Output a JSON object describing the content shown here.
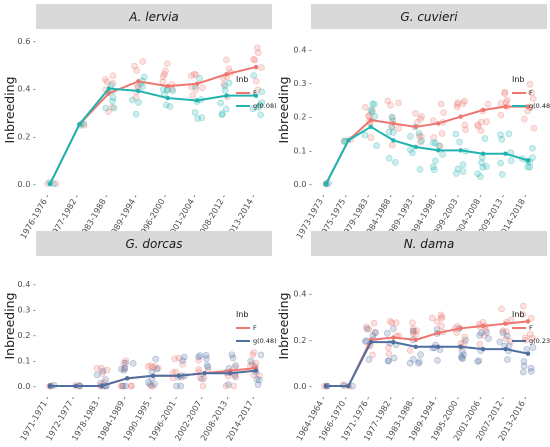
{
  "figure": {
    "legend_title": "Inb",
    "colors": {
      "F": "#ee766f",
      "g": "#20b3b0",
      "g_navy": "#4f6fa0",
      "strip": "#d9d9d9"
    }
  },
  "chart_data": [
    {
      "type": "line",
      "title": "A. lervia",
      "ylabel": "Inbreeding",
      "xlabel": "",
      "ylim": [
        0,
        0.62
      ],
      "yticks": [
        0.0,
        0.2,
        0.4,
        0.6
      ],
      "ytick_labels": [
        "0.0 -",
        "0.2 -",
        "0.4 -",
        "0.6 -"
      ],
      "categories": [
        "1976-1976",
        "1977-1982",
        "1983-1988",
        "1989-1994",
        "1996-2000",
        "2001-2004",
        "2008-2012",
        "2013-2014"
      ],
      "legend": [
        {
          "key": "F",
          "label": "F"
        },
        {
          "key": "g",
          "label": "g(0.08)"
        }
      ],
      "series": [
        {
          "name": "F",
          "key": "F",
          "values": [
            0.0,
            0.25,
            0.38,
            0.43,
            0.41,
            0.42,
            0.46,
            0.49
          ]
        },
        {
          "name": "g(0.08)",
          "key": "g",
          "values": [
            0.0,
            0.25,
            0.4,
            0.39,
            0.36,
            0.35,
            0.37,
            0.37
          ]
        }
      ]
    },
    {
      "type": "line",
      "title": "G. cuvieri",
      "ylabel": "Inbreeding",
      "xlabel": "",
      "ylim": [
        0,
        0.44
      ],
      "yticks": [
        0.0,
        0.1,
        0.2,
        0.3,
        0.4
      ],
      "ytick_labels": [
        "0.0 -",
        "0.1 -",
        "0.2 -",
        "0.3 -",
        "0.4 -"
      ],
      "categories": [
        "1973-1973",
        "1975-1975",
        "1979-1983",
        "1984-1988",
        "1989-1993",
        "1994-1998",
        "1999-2003",
        "2004-2008",
        "2009-2013",
        "2014-2018"
      ],
      "legend": [
        {
          "key": "F",
          "label": "F"
        },
        {
          "key": "g",
          "label": "g(0.48)"
        }
      ],
      "series": [
        {
          "name": "F",
          "key": "F",
          "values": [
            0.0,
            0.13,
            0.19,
            0.18,
            0.17,
            0.18,
            0.2,
            0.22,
            0.23,
            0.23
          ]
        },
        {
          "name": "g(0.48)",
          "key": "g",
          "values": [
            0.0,
            0.13,
            0.17,
            0.13,
            0.11,
            0.1,
            0.1,
            0.09,
            0.09,
            0.07
          ]
        }
      ]
    },
    {
      "type": "line",
      "title": "G. dorcas",
      "ylabel": "Inbreeding",
      "xlabel": "",
      "ylim": [
        0,
        0.47
      ],
      "yticks": [
        0.0,
        0.1,
        0.2,
        0.3,
        0.4
      ],
      "ytick_labels": [
        "0.0 -",
        "0.1 -",
        "0.2 -",
        "0.3 -",
        "0.4 -"
      ],
      "categories": [
        "1971-1971",
        "1972-1977",
        "1978-1983",
        "1984-1989",
        "1990-1995",
        "1996-2001",
        "2002-2007",
        "2008-2013",
        "2014-2017"
      ],
      "legend": [
        {
          "key": "F",
          "label": "F"
        },
        {
          "key": "g",
          "label": "g(0.48)"
        }
      ],
      "series": [
        {
          "name": "F",
          "key": "F",
          "values": [
            0.0,
            0.0,
            0.0,
            0.03,
            0.04,
            0.04,
            0.05,
            0.06,
            0.07
          ]
        },
        {
          "name": "g(0.48)",
          "key": "g",
          "values": [
            0.0,
            0.0,
            0.0,
            0.03,
            0.04,
            0.04,
            0.05,
            0.05,
            0.06
          ]
        }
      ]
    },
    {
      "type": "line",
      "title": "N. dama",
      "ylabel": "Inbreeding",
      "xlabel": "",
      "ylim": [
        0,
        0.52
      ],
      "yticks": [
        0.0,
        0.2,
        0.4
      ],
      "ytick_labels": [
        "0.0 -",
        "0.2 -",
        "0.4 -"
      ],
      "categories": [
        "1964-1964",
        "1966-1970",
        "1971-1976",
        "1977-1982",
        "1983-1988",
        "1989-1994",
        "1995-2000",
        "2001-2006",
        "2007-2012",
        "2013-2016"
      ],
      "legend": [
        {
          "key": "F",
          "label": "F"
        },
        {
          "key": "g",
          "label": "g(0.23)"
        }
      ],
      "series": [
        {
          "name": "F",
          "key": "F",
          "values": [
            0.0,
            0.0,
            0.2,
            0.21,
            0.2,
            0.23,
            0.25,
            0.26,
            0.27,
            0.28
          ]
        },
        {
          "name": "g(0.23)",
          "key": "g",
          "values": [
            0.0,
            0.0,
            0.19,
            0.19,
            0.17,
            0.17,
            0.17,
            0.16,
            0.16,
            0.14
          ]
        }
      ]
    }
  ]
}
